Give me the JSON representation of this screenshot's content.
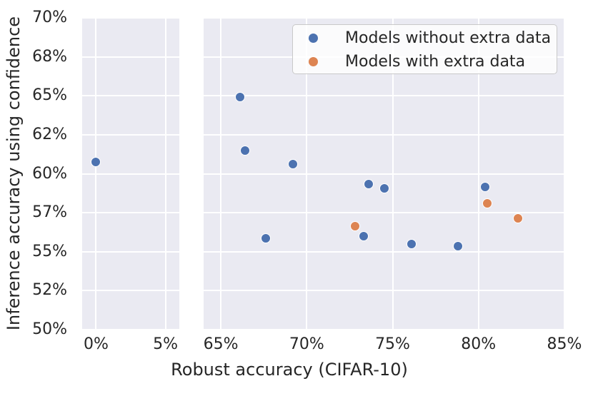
{
  "style": {
    "figure_bg": "#ffffff",
    "panel_bg": "#eaeaf2",
    "grid_color": "#ffffff",
    "text_color": "#262626",
    "point_edge_color": "#ffffff",
    "legend_bg": "rgba(255,255,255,0.78)",
    "legend_border": "#c9c9c9"
  },
  "chart_data": {
    "type": "scatter",
    "title": "",
    "xlabel": "Robust accuracy (CIFAR-10)",
    "ylabel": "Inference accuracy using confidence",
    "x_axis_broken": true,
    "grid": true,
    "y_scale_note": "non-linear (probit-like): y ticks evenly spaced in pixels",
    "ylim": [
      50,
      70
    ],
    "yticks": [
      {
        "value": 50,
        "label": "50%"
      },
      {
        "value": 52,
        "label": "52%"
      },
      {
        "value": 55,
        "label": "55%"
      },
      {
        "value": 57,
        "label": "57%"
      },
      {
        "value": 60,
        "label": "60%"
      },
      {
        "value": 62,
        "label": "62%"
      },
      {
        "value": 65,
        "label": "65%"
      },
      {
        "value": 68,
        "label": "68%"
      },
      {
        "value": 70,
        "label": "70%"
      }
    ],
    "panels": [
      {
        "name": "left",
        "xlim": [
          -1,
          6
        ],
        "xticks": [
          {
            "value": 0,
            "label": "0%"
          },
          {
            "value": 5,
            "label": "5%"
          }
        ]
      },
      {
        "name": "right",
        "xlim": [
          64,
          85
        ],
        "xticks": [
          {
            "value": 65,
            "label": "65%"
          },
          {
            "value": 70,
            "label": "70%"
          },
          {
            "value": 75,
            "label": "75%"
          },
          {
            "value": 80,
            "label": "80%"
          },
          {
            "value": 85,
            "label": "85%"
          }
        ]
      }
    ],
    "series": [
      {
        "name": "Models without extra data",
        "color": "#4c72b0",
        "points": [
          [
            0.0,
            60.6
          ],
          [
            66.1,
            64.9
          ],
          [
            66.4,
            61.2
          ],
          [
            67.6,
            55.7
          ],
          [
            69.2,
            60.5
          ],
          [
            73.3,
            55.8
          ],
          [
            73.6,
            59.2
          ],
          [
            74.5,
            58.9
          ],
          [
            76.1,
            55.4
          ],
          [
            78.8,
            55.3
          ],
          [
            80.4,
            59.0
          ]
        ]
      },
      {
        "name": "Models with extra data",
        "color": "#dd8452",
        "points": [
          [
            72.8,
            56.3
          ],
          [
            80.5,
            57.7
          ],
          [
            82.3,
            56.7
          ]
        ]
      }
    ],
    "legend": {
      "position": "upper-right",
      "entries": [
        "Models without extra data",
        "Models with extra data"
      ]
    }
  }
}
